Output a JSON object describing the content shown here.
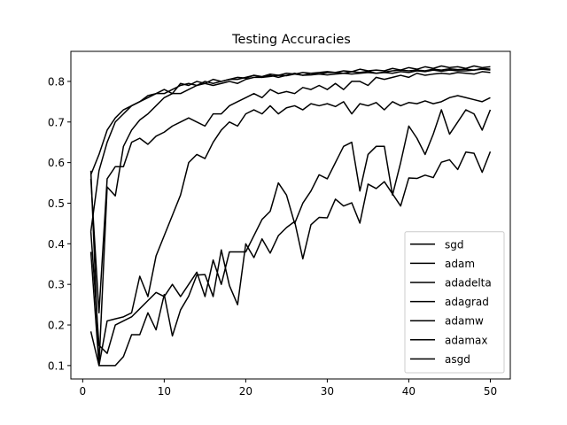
{
  "chart_data": {
    "type": "line",
    "title": "Testing Accuracies",
    "xlabel": "",
    "ylabel": "",
    "xlim": [
      -1.45,
      52.45
    ],
    "ylim": [
      0.067,
      0.874
    ],
    "xticks": [
      0,
      10,
      20,
      30,
      40,
      50
    ],
    "yticks": [
      0.1,
      0.2,
      0.3,
      0.4,
      0.5,
      0.6,
      0.7,
      0.8
    ],
    "ytick_labels": [
      "0.1",
      "0.2",
      "0.3",
      "0.4",
      "0.5",
      "0.6",
      "0.7",
      "0.8"
    ],
    "grid": false,
    "legend_position": "lower-right",
    "line_color": "#000000",
    "x": [
      1,
      2,
      3,
      4,
      5,
      6,
      7,
      8,
      9,
      10,
      11,
      12,
      13,
      14,
      15,
      16,
      17,
      18,
      19,
      20,
      21,
      22,
      23,
      24,
      25,
      26,
      27,
      28,
      29,
      30,
      31,
      32,
      33,
      34,
      35,
      36,
      37,
      38,
      39,
      40,
      41,
      42,
      43,
      44,
      45,
      46,
      47,
      48,
      49,
      50
    ],
    "series": [
      {
        "name": "sgd",
        "values": [
          0.184,
          0.1,
          0.1,
          0.1,
          0.122,
          0.176,
          0.176,
          0.23,
          0.188,
          0.275,
          0.173,
          0.237,
          0.271,
          0.323,
          0.324,
          0.27,
          0.385,
          0.297,
          0.25,
          0.4,
          0.366,
          0.412,
          0.377,
          0.42,
          0.44,
          0.455,
          0.363,
          0.447,
          0.465,
          0.464,
          0.51,
          0.493,
          0.501,
          0.451,
          0.547,
          0.536,
          0.553,
          0.523,
          0.493,
          0.562,
          0.561,
          0.569,
          0.563,
          0.601,
          0.607,
          0.583,
          0.626,
          0.623,
          0.576,
          0.627
        ]
      },
      {
        "name": "adam",
        "values": [
          0.58,
          0.1,
          0.54,
          0.518,
          0.64,
          0.68,
          0.705,
          0.72,
          0.74,
          0.76,
          0.77,
          0.77,
          0.78,
          0.79,
          0.795,
          0.79,
          0.795,
          0.8,
          0.795,
          0.805,
          0.81,
          0.81,
          0.815,
          0.81,
          0.815,
          0.82,
          0.815,
          0.82,
          0.818,
          0.822,
          0.822,
          0.82,
          0.824,
          0.822,
          0.825,
          0.82,
          0.823,
          0.826,
          0.828,
          0.826,
          0.828,
          0.826,
          0.83,
          0.828,
          0.831,
          0.829,
          0.83,
          0.828,
          0.832,
          0.83
        ]
      },
      {
        "name": "adadelta",
        "values": [
          0.38,
          0.1,
          0.21,
          0.215,
          0.22,
          0.23,
          0.32,
          0.27,
          0.37,
          0.42,
          0.47,
          0.52,
          0.6,
          0.62,
          0.61,
          0.65,
          0.68,
          0.7,
          0.69,
          0.72,
          0.73,
          0.72,
          0.74,
          0.72,
          0.735,
          0.74,
          0.73,
          0.745,
          0.74,
          0.745,
          0.738,
          0.75,
          0.72,
          0.745,
          0.74,
          0.748,
          0.73,
          0.75,
          0.74,
          0.748,
          0.745,
          0.752,
          0.745,
          0.75,
          0.76,
          0.765,
          0.76,
          0.755,
          0.75,
          0.76
        ]
      },
      {
        "name": "adagrad",
        "values": [
          0.43,
          0.15,
          0.13,
          0.2,
          0.21,
          0.22,
          0.24,
          0.26,
          0.28,
          0.27,
          0.3,
          0.27,
          0.3,
          0.33,
          0.27,
          0.36,
          0.3,
          0.38,
          0.38,
          0.38,
          0.42,
          0.46,
          0.48,
          0.55,
          0.52,
          0.45,
          0.5,
          0.53,
          0.57,
          0.56,
          0.6,
          0.64,
          0.65,
          0.53,
          0.62,
          0.64,
          0.64,
          0.52,
          0.6,
          0.69,
          0.66,
          0.62,
          0.67,
          0.73,
          0.67,
          0.7,
          0.73,
          0.72,
          0.68,
          0.73
        ]
      },
      {
        "name": "adamw",
        "values": [
          0.56,
          0.23,
          0.56,
          0.59,
          0.59,
          0.65,
          0.66,
          0.645,
          0.665,
          0.675,
          0.69,
          0.7,
          0.71,
          0.7,
          0.69,
          0.72,
          0.72,
          0.74,
          0.75,
          0.76,
          0.77,
          0.76,
          0.78,
          0.77,
          0.775,
          0.77,
          0.785,
          0.78,
          0.79,
          0.78,
          0.795,
          0.78,
          0.8,
          0.8,
          0.79,
          0.81,
          0.805,
          0.81,
          0.815,
          0.81,
          0.82,
          0.815,
          0.818,
          0.82,
          0.818,
          0.822,
          0.82,
          0.818,
          0.824,
          0.822
        ]
      },
      {
        "name": "adamax",
        "values": [
          0.43,
          0.58,
          0.65,
          0.7,
          0.72,
          0.74,
          0.75,
          0.76,
          0.77,
          0.77,
          0.78,
          0.79,
          0.795,
          0.79,
          0.8,
          0.795,
          0.8,
          0.805,
          0.805,
          0.81,
          0.815,
          0.81,
          0.812,
          0.815,
          0.814,
          0.818,
          0.815,
          0.816,
          0.818,
          0.816,
          0.818,
          0.82,
          0.818,
          0.82,
          0.822,
          0.82,
          0.822,
          0.82,
          0.824,
          0.822,
          0.826,
          0.824,
          0.828,
          0.825,
          0.828,
          0.826,
          0.826,
          0.828,
          0.83,
          0.828
        ]
      },
      {
        "name": "asgd",
        "values": [
          0.57,
          0.62,
          0.68,
          0.71,
          0.73,
          0.74,
          0.75,
          0.765,
          0.77,
          0.78,
          0.77,
          0.795,
          0.79,
          0.8,
          0.795,
          0.805,
          0.8,
          0.805,
          0.81,
          0.808,
          0.815,
          0.812,
          0.818,
          0.815,
          0.82,
          0.818,
          0.822,
          0.82,
          0.822,
          0.824,
          0.822,
          0.826,
          0.824,
          0.83,
          0.826,
          0.828,
          0.826,
          0.832,
          0.828,
          0.834,
          0.83,
          0.836,
          0.832,
          0.838,
          0.834,
          0.836,
          0.832,
          0.838,
          0.834,
          0.836
        ]
      }
    ]
  }
}
